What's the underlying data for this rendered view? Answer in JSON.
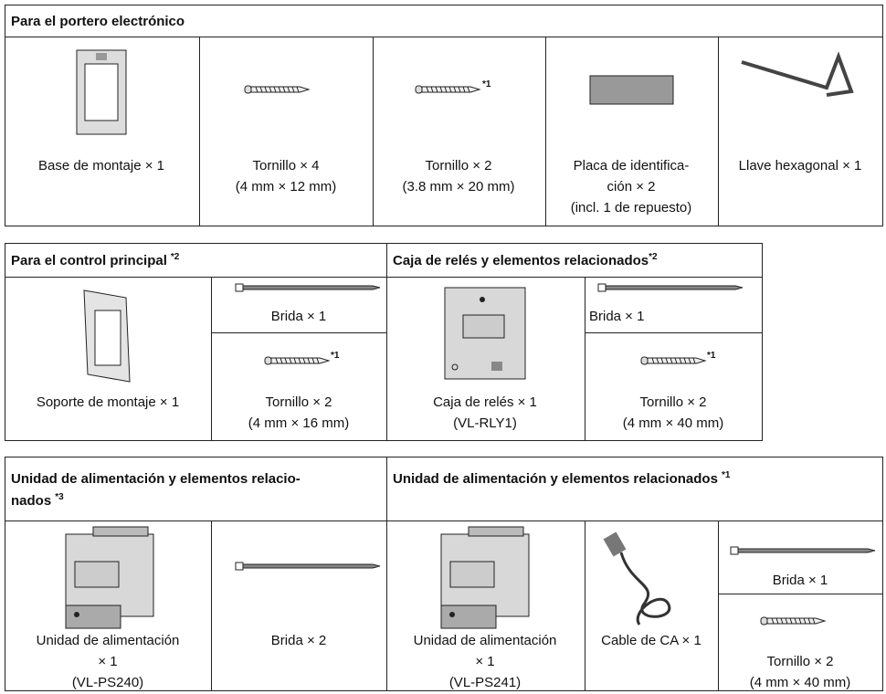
{
  "sections": [
    {
      "title": "Para el portero electrónico",
      "items": [
        {
          "lines": [
            "Base de montaje × 1"
          ]
        },
        {
          "lines": [
            "Tornillo × 4",
            "(4 mm × 12 mm)"
          ]
        },
        {
          "note": "*1",
          "lines": [
            "Tornillo × 2",
            "(3.8 mm × 20 mm)"
          ]
        },
        {
          "lines": [
            "Placa de identifica-",
            "ción × 2",
            "(incl. 1 de repuesto)"
          ]
        },
        {
          "lines": [
            "Llave hexagonal × 1"
          ]
        }
      ]
    },
    {
      "title": "Para el control principal",
      "note": "*2",
      "items": [
        {
          "lines": [
            "Soporte de montaje × 1"
          ]
        },
        {
          "lines": [
            "Brida × 1"
          ]
        },
        {
          "note": "*1",
          "lines": [
            "Tornillo × 2",
            "(4 mm × 16 mm)"
          ]
        }
      ]
    },
    {
      "title": "Caja de relés y elementos relacionados",
      "note": "*2",
      "items": [
        {
          "lines": [
            "Caja de relés × 1",
            "(VL-RLY1)"
          ]
        },
        {
          "lines": [
            "Brida × 1"
          ]
        },
        {
          "note": "*1",
          "lines": [
            "Tornillo × 2",
            "(4 mm × 40 mm)"
          ]
        }
      ]
    },
    {
      "title_lines": [
        "Unidad de alimentación y elementos relacio-",
        "nados"
      ],
      "note": "*3",
      "items": [
        {
          "lines": [
            "Unidad de alimentación",
            "× 1",
            "(VL-PS240)"
          ]
        },
        {
          "lines": [
            "Brida × 2"
          ]
        }
      ]
    },
    {
      "title": "Unidad de alimentación y elementos relacionados",
      "note": "*1",
      "items": [
        {
          "lines": [
            "Unidad de alimentación",
            "× 1",
            "(VL-PS241)"
          ]
        },
        {
          "lines": [
            "Cable de CA × 1"
          ]
        },
        {
          "lines": [
            "Brida × 1"
          ]
        },
        {
          "lines": [
            "Tornillo × 2",
            "(4 mm × 40 mm)"
          ]
        }
      ]
    }
  ]
}
